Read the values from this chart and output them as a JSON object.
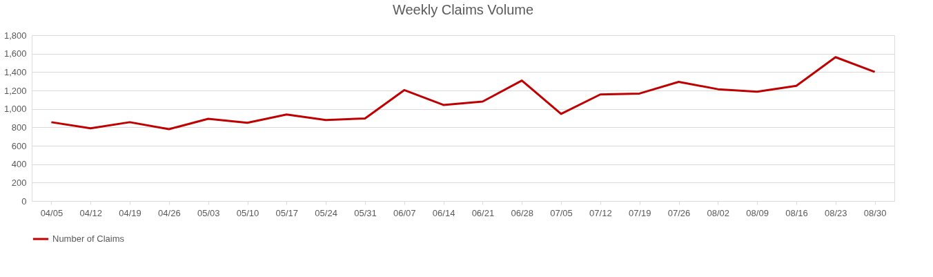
{
  "chart_data": {
    "type": "line",
    "title": "Weekly Claims Volume",
    "categories": [
      "04/05",
      "04/12",
      "04/19",
      "04/26",
      "05/03",
      "05/10",
      "05/17",
      "05/24",
      "05/31",
      "06/07",
      "06/14",
      "06/21",
      "06/28",
      "07/05",
      "07/12",
      "07/19",
      "07/26",
      "08/02",
      "08/09",
      "08/16",
      "08/23",
      "08/30"
    ],
    "series": [
      {
        "name": "Number of Claims",
        "color": "#c00000",
        "values": [
          856,
          790,
          856,
          780,
          893,
          850,
          940,
          880,
          896,
          1204,
          1043,
          1080,
          1308,
          946,
          1157,
          1167,
          1294,
          1214,
          1187,
          1251,
          1562,
          1401
        ]
      }
    ],
    "ylim": [
      0,
      1800
    ],
    "yticks": [
      0,
      200,
      400,
      600,
      800,
      {
        "value": 1000,
        "label": "1,000"
      },
      {
        "value": 1200,
        "label": "1,200"
      },
      {
        "value": 1400,
        "label": "1,400"
      },
      {
        "value": 1600,
        "label": "1,600"
      },
      {
        "value": 1800,
        "label": "1,800"
      }
    ],
    "grid": "y",
    "legend": "bottom",
    "marker": "none",
    "line_style": "solid"
  }
}
